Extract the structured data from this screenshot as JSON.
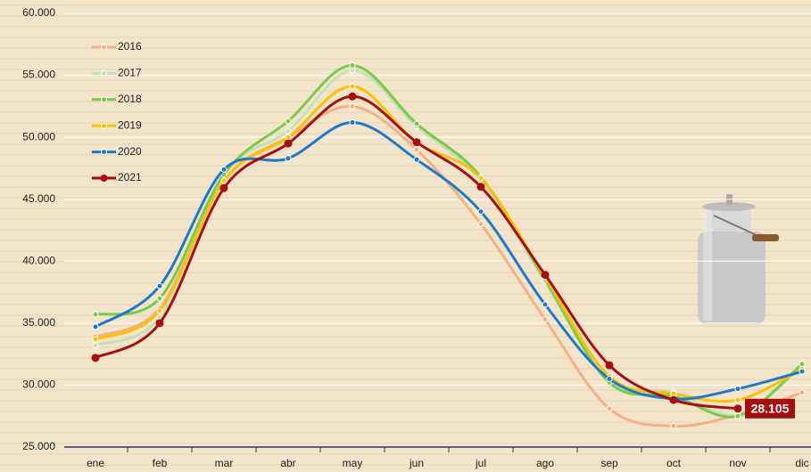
{
  "chart_data": {
    "type": "line",
    "categories": [
      "ene",
      "feb",
      "mar",
      "abr",
      "may",
      "jun",
      "jul",
      "ago",
      "sep",
      "oct",
      "nov",
      "dic"
    ],
    "ylim": [
      25000,
      60000
    ],
    "yticks": [
      {
        "value": 25000,
        "label": "25.000"
      },
      {
        "value": 30000,
        "label": "30.000"
      },
      {
        "value": 35000,
        "label": "35.000"
      },
      {
        "value": 40000,
        "label": "40.000"
      },
      {
        "value": 45000,
        "label": "45.000"
      },
      {
        "value": 50000,
        "label": "50.000"
      },
      {
        "value": 55000,
        "label": "55.000"
      },
      {
        "value": 60000,
        "label": "60.000"
      }
    ],
    "grid": true,
    "legend": "top-left",
    "series": [
      {
        "name": "2016",
        "color": "#f4b183",
        "values": [
          33900,
          36200,
          46500,
          50000,
          52500,
          49000,
          43000,
          35300,
          28100,
          26700,
          27600,
          29400
        ]
      },
      {
        "name": "2017",
        "color": "#c5e0b4",
        "values": [
          33200,
          35500,
          47000,
          50500,
          55400,
          50900,
          46500,
          38300,
          30300,
          29400,
          27600,
          31500
        ]
      },
      {
        "name": "2018",
        "color": "#78cc4a",
        "values": [
          35700,
          37000,
          47000,
          51300,
          55800,
          51100,
          46800,
          38500,
          30200,
          29100,
          27500,
          31700
        ]
      },
      {
        "name": "2019",
        "color": "#ffc000",
        "values": [
          33700,
          36000,
          46500,
          50000,
          54100,
          49600,
          46700,
          38700,
          30700,
          29300,
          28800,
          31300
        ]
      },
      {
        "name": "2020",
        "color": "#1f78c8",
        "values": [
          34700,
          38000,
          47400,
          48300,
          51200,
          48200,
          44000,
          36500,
          30500,
          28900,
          29700,
          31100
        ]
      },
      {
        "name": "2021",
        "color": "#a50f0f",
        "values": [
          32200,
          35000,
          45900,
          49500,
          53300,
          49600,
          46000,
          38900,
          31600,
          28800,
          28105,
          null
        ],
        "value_labels": [
          null,
          null,
          null,
          null,
          null,
          null,
          null,
          null,
          null,
          null,
          "28.105",
          null
        ]
      }
    ]
  }
}
